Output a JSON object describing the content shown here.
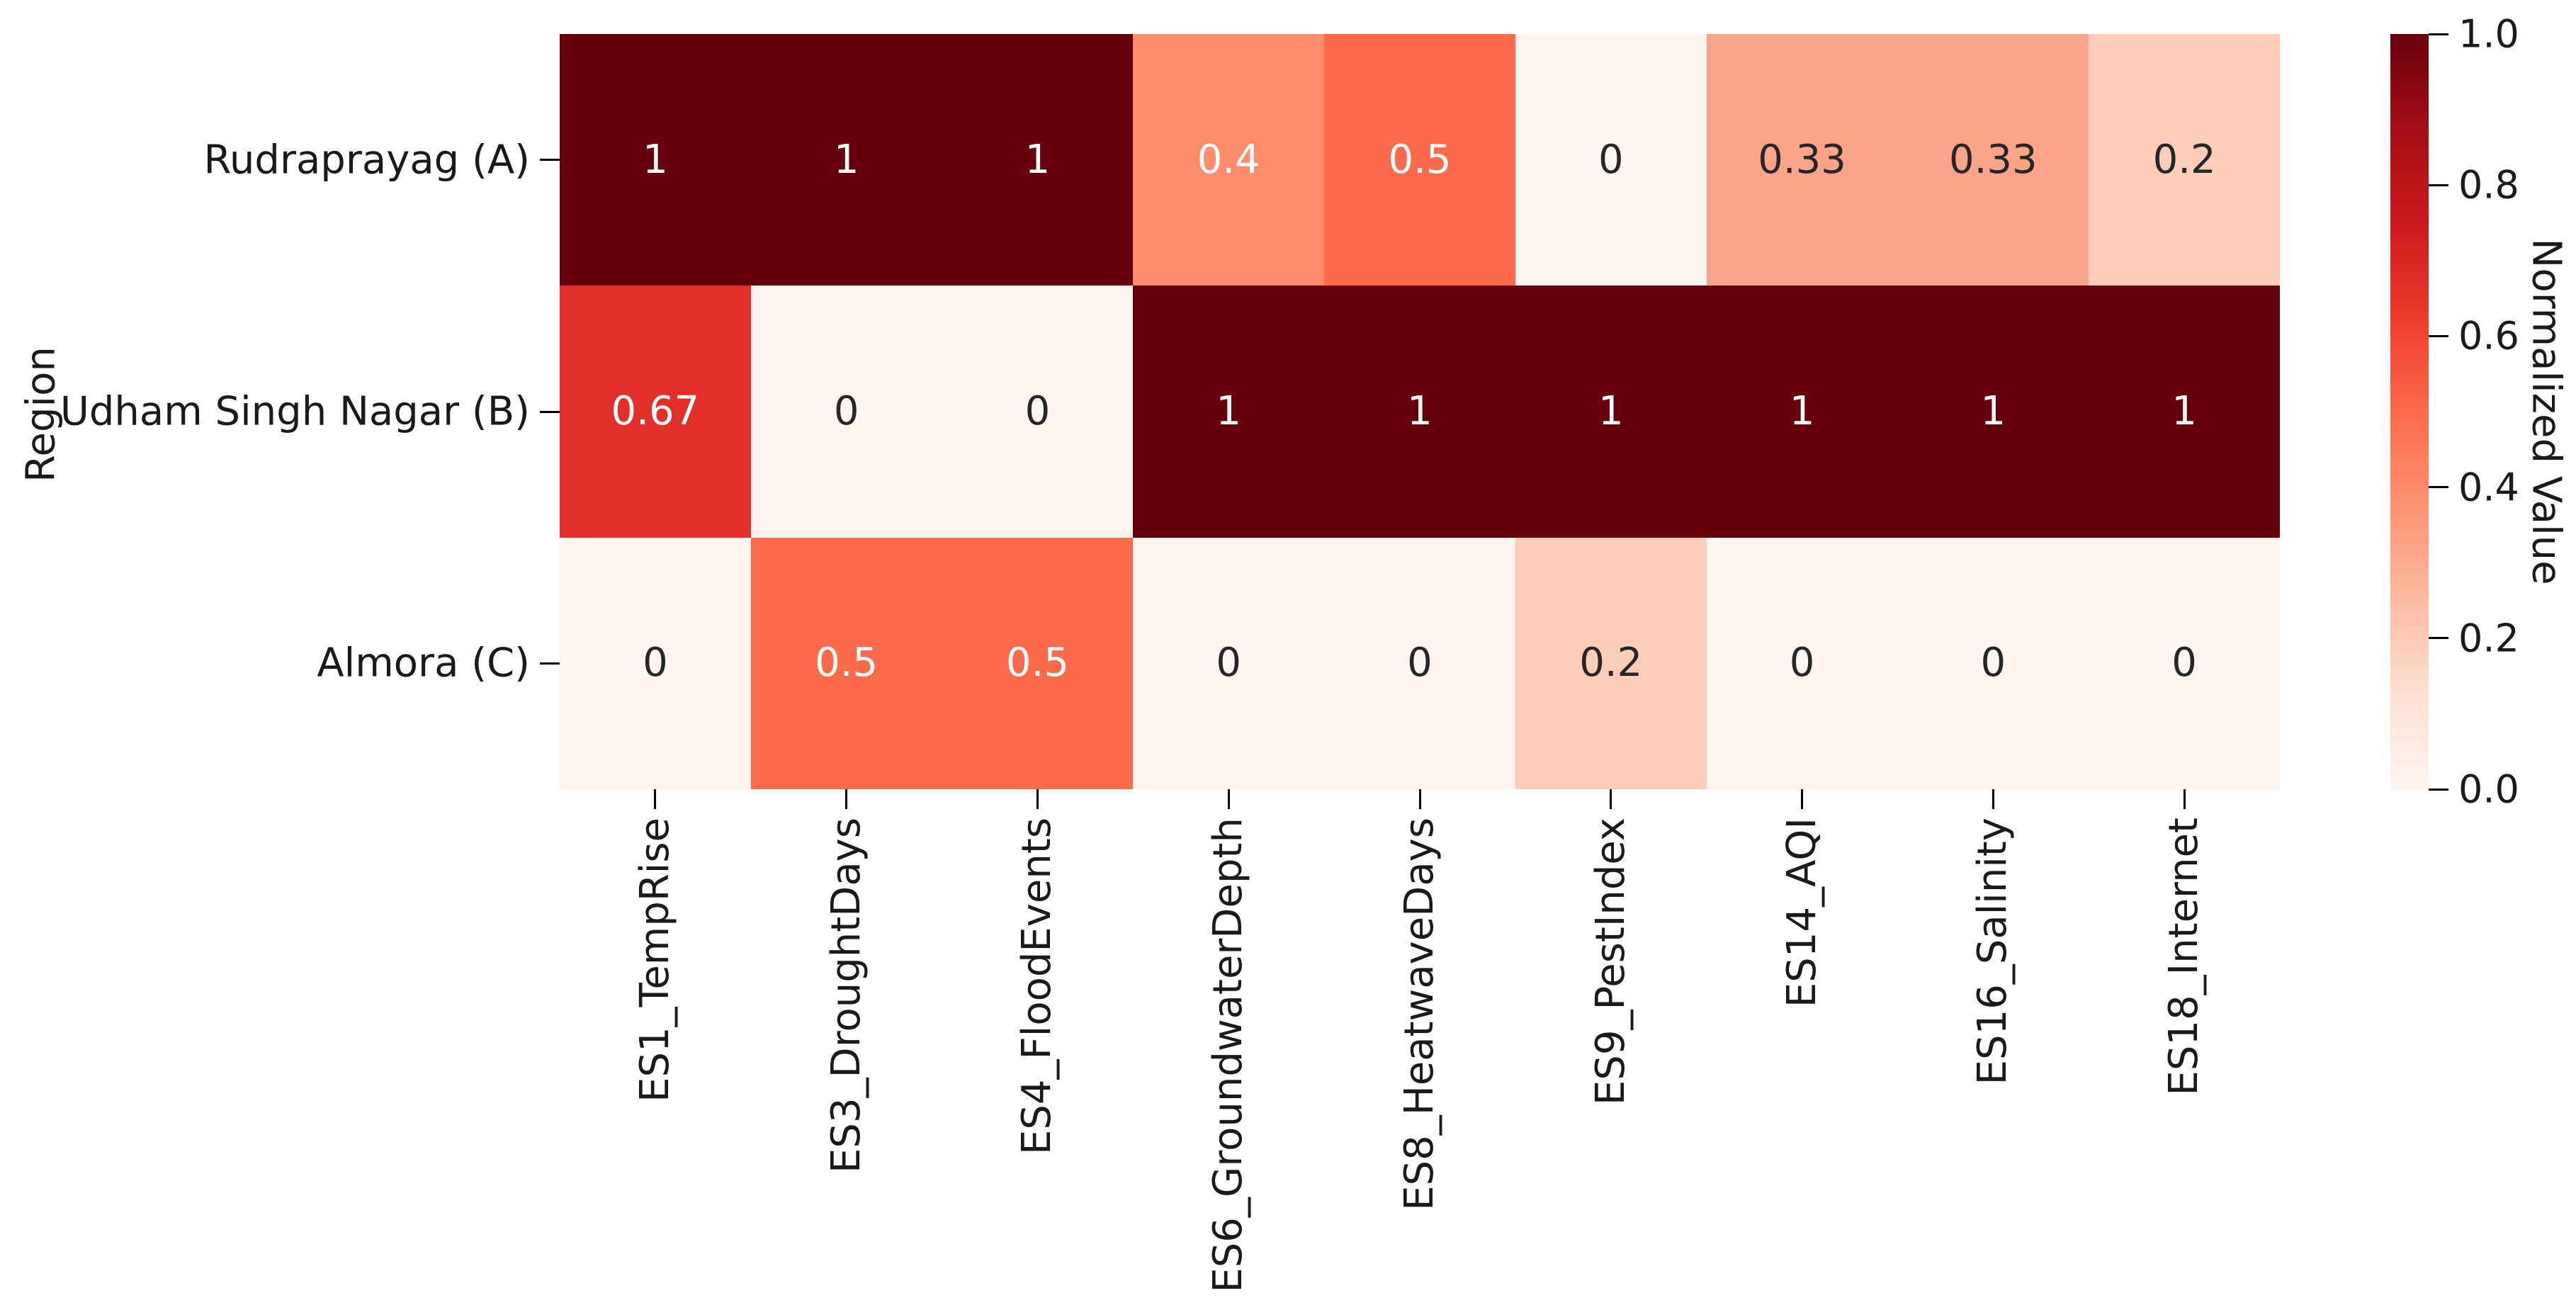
{
  "chart_data": {
    "type": "heatmap",
    "ylabel": "Region",
    "colorbar_label": "Normalized Value",
    "rows": [
      "Rudraprayag (A)",
      "Udham Singh Nagar (B)",
      "Almora (C)"
    ],
    "columns": [
      "ES1_TempRise",
      "ES3_DroughtDays",
      "ES4_FloodEvents",
      "ES6_GroundwaterDepth",
      "ES8_HeatwaveDays",
      "ES9_PestIndex",
      "ES14_AQI",
      "ES16_Salinity",
      "ES18_Internet"
    ],
    "values": [
      [
        1,
        1,
        1,
        0.4,
        0.5,
        0,
        0.33,
        0.33,
        0.2
      ],
      [
        0.67,
        0,
        0,
        1,
        1,
        1,
        1,
        1,
        1
      ],
      [
        0,
        0.5,
        0.5,
        0,
        0,
        0.2,
        0,
        0,
        0
      ]
    ],
    "value_labels": [
      [
        "1",
        "1",
        "1",
        "0.4",
        "0.5",
        "0",
        "0.33",
        "0.33",
        "0.2"
      ],
      [
        "0.67",
        "0",
        "0",
        "1",
        "1",
        "1",
        "1",
        "1",
        "1"
      ],
      [
        "0",
        "0.5",
        "0.5",
        "0",
        "0",
        "0.2",
        "0",
        "0",
        "0"
      ]
    ],
    "colormap": "Reds",
    "value_colors": {
      "0": "#fff5f0",
      "0.2": "#fdcdb9",
      "0.33": "#fca488",
      "0.4": "#fc8c6c",
      "0.5": "#fb6a4a",
      "0.67": "#e32f27",
      "1": "#67000d"
    },
    "annotation_text_colors": {
      "on_dark": "#ffffff",
      "on_light": "#262626",
      "white_text_threshold": 0.4
    },
    "colorbar_ticks": [
      "1.0",
      "0.8",
      "0.6",
      "0.4",
      "0.2",
      "0.0"
    ],
    "colorbar_tick_values": [
      1.0,
      0.8,
      0.6,
      0.4,
      0.2,
      0.0
    ],
    "colorbar_range": [
      0.0,
      1.0
    ],
    "grid": false,
    "legend_position": "right-colorbar",
    "background_color": "#ffffff"
  }
}
